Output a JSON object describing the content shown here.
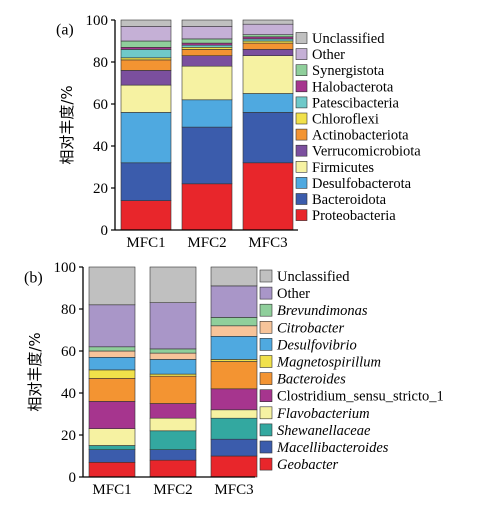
{
  "chart_data": [
    {
      "type": "bar",
      "stacked": true,
      "panel_label": "(a)",
      "ylabel": "相对丰度/%",
      "ylim": [
        0,
        100
      ],
      "yticks": [
        0,
        20,
        40,
        60,
        80,
        100
      ],
      "categories": [
        "MFC1",
        "MFC2",
        "MFC3"
      ],
      "legend_placement": "right",
      "series": [
        {
          "name": "Proteobacteria",
          "color": "#e8262b",
          "values": [
            14,
            22,
            32
          ],
          "italic": false
        },
        {
          "name": "Bacteroidota",
          "color": "#3b5cac",
          "values": [
            18,
            27,
            24
          ],
          "italic": false
        },
        {
          "name": "Desulfobacterota",
          "color": "#4fa9e0",
          "values": [
            24,
            13,
            9
          ],
          "italic": false
        },
        {
          "name": "Firmicutes",
          "color": "#f6f2a2",
          "values": [
            13,
            16,
            18
          ],
          "italic": false
        },
        {
          "name": "Verrucomicrobiota",
          "color": "#7b4f9e",
          "values": [
            7,
            5,
            3
          ],
          "italic": false
        },
        {
          "name": "Actinobacteriota",
          "color": "#f39432",
          "values": [
            5,
            3,
            3
          ],
          "italic": false
        },
        {
          "name": "Chloroflexi",
          "color": "#f1e14a",
          "values": [
            1,
            1,
            1
          ],
          "italic": false
        },
        {
          "name": "Patescibacteria",
          "color": "#6fc9c9",
          "values": [
            4,
            1,
            1
          ],
          "italic": false
        },
        {
          "name": "Halobacterota",
          "color": "#a6358e",
          "values": [
            1,
            1,
            1
          ],
          "italic": false
        },
        {
          "name": "Synergistota",
          "color": "#8fcf9b",
          "values": [
            3,
            2,
            1
          ],
          "italic": false
        },
        {
          "name": "Other",
          "color": "#c5b0d6",
          "values": [
            7,
            6,
            5
          ],
          "italic": false
        },
        {
          "name": "Unclassified",
          "color": "#c0c0c0",
          "values": [
            3,
            3,
            2
          ],
          "italic": false
        }
      ]
    },
    {
      "type": "bar",
      "stacked": true,
      "panel_label": "(b)",
      "ylabel": "相对丰度/%",
      "ylim": [
        0,
        100
      ],
      "yticks": [
        0,
        20,
        40,
        60,
        80,
        100
      ],
      "categories": [
        "MFC1",
        "MFC2",
        "MFC3"
      ],
      "legend_placement": "right",
      "series": [
        {
          "name": "Geobacter",
          "color": "#e8262b",
          "values": [
            7,
            8,
            10
          ],
          "italic": true
        },
        {
          "name": "Macellibacteroides",
          "color": "#3b5cac",
          "values": [
            6,
            5,
            8
          ],
          "italic": true
        },
        {
          "name": "Shewanellaceae",
          "color": "#33a8a0",
          "values": [
            2,
            9,
            10
          ],
          "italic": true
        },
        {
          "name": "Flavobacterium",
          "color": "#f6f2a2",
          "values": [
            8,
            6,
            4
          ],
          "italic": true
        },
        {
          "name": "Clostridium_sensu_stricto_1",
          "color": "#a6358e",
          "values": [
            13,
            7,
            10
          ],
          "italic": false
        },
        {
          "name": "Bacteroides",
          "color": "#f39432",
          "values": [
            11,
            13,
            13
          ],
          "italic": true
        },
        {
          "name": "Magnetospirillum",
          "color": "#f1e14a",
          "values": [
            4,
            1,
            1
          ],
          "italic": true
        },
        {
          "name": "Desulfovibrio",
          "color": "#4fa9e0",
          "values": [
            6,
            7,
            11
          ],
          "italic": true
        },
        {
          "name": "Citrobacter",
          "color": "#f7c49a",
          "values": [
            3,
            3,
            5
          ],
          "italic": true
        },
        {
          "name": "Brevundimonas",
          "color": "#8fcf9b",
          "values": [
            2,
            2,
            4
          ],
          "italic": true
        },
        {
          "name": "Other",
          "color": "#a996c8",
          "values": [
            20,
            22,
            15
          ],
          "italic": false
        },
        {
          "name": "Unclassified",
          "color": "#c0c0c0",
          "values": [
            18,
            17,
            9
          ],
          "italic": false
        }
      ]
    }
  ]
}
